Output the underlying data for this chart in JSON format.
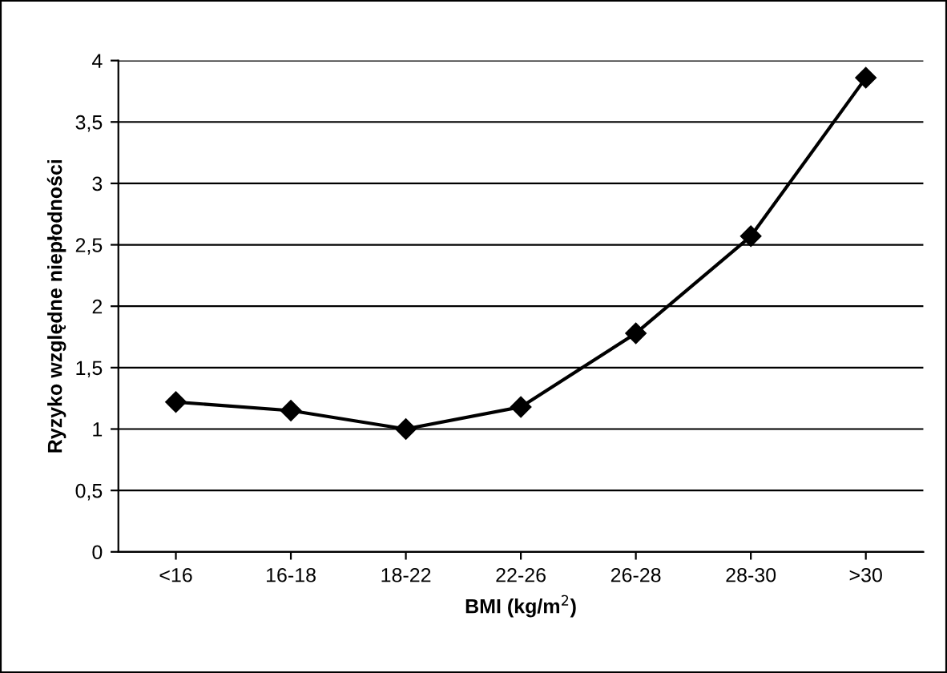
{
  "chart_data": {
    "type": "line",
    "xlabel": "BMI (kg/m$^{2}$)",
    "ylabel": "Ryzyko względne niepłodności",
    "categories": [
      "<16",
      "16-18",
      "18-22",
      "22-26",
      "26-28",
      "28-30",
      ">30"
    ],
    "series": [
      {
        "color": "#000000",
        "values": [
          1.22,
          1.15,
          1.0,
          1.18,
          1.78,
          2.57,
          3.86
        ]
      }
    ],
    "ylim": [
      0,
      4
    ],
    "yticks": [
      0,
      {
        "value": 0.5,
        "label": "0,5"
      },
      1,
      {
        "value": 1.5,
        "label": "1,5"
      },
      2,
      {
        "value": 2.5,
        "label": "2,5"
      },
      3,
      {
        "value": 3.5,
        "label": "3,5"
      },
      4
    ],
    "grid": "y",
    "marker": "diamond",
    "line_style": "solid",
    "legend": false
  }
}
